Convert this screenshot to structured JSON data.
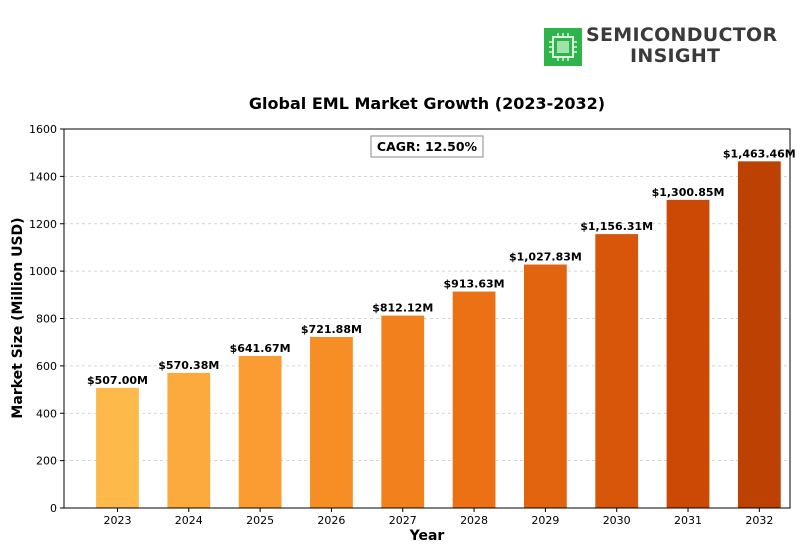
{
  "logo": {
    "line1": "SEMICONDUCTOR",
    "line2": "INSIGHT",
    "icon": "chip-icon",
    "icon_color": "#2db84a"
  },
  "chart_data": {
    "type": "bar",
    "title": "Global EML Market Growth (2023-2032)",
    "xlabel": "Year",
    "ylabel": "Market Size (Million USD)",
    "ylim": [
      0,
      1600
    ],
    "yticks": [
      0,
      200,
      400,
      600,
      800,
      1000,
      1200,
      1400,
      1600
    ],
    "grid": "horizontal dashed",
    "annotation": "CAGR: 12.50%",
    "categories": [
      "2023",
      "2024",
      "2025",
      "2026",
      "2027",
      "2028",
      "2029",
      "2030",
      "2031",
      "2032"
    ],
    "values": [
      507.0,
      570.38,
      641.67,
      721.88,
      812.12,
      913.63,
      1027.83,
      1156.31,
      1300.85,
      1463.46
    ],
    "labels": [
      "$507.00M",
      "$570.38M",
      "$641.67M",
      "$721.88M",
      "$812.12M",
      "$913.63M",
      "$1,027.83M",
      "$1,156.31M",
      "$1,300.85M",
      "$1,463.46M"
    ],
    "colors": [
      "#FDB94A",
      "#FCA93D",
      "#FA9C31",
      "#F68E25",
      "#F2801C",
      "#EB7114",
      "#E2640F",
      "#D8560A",
      "#CB4905",
      "#BC4102"
    ]
  }
}
